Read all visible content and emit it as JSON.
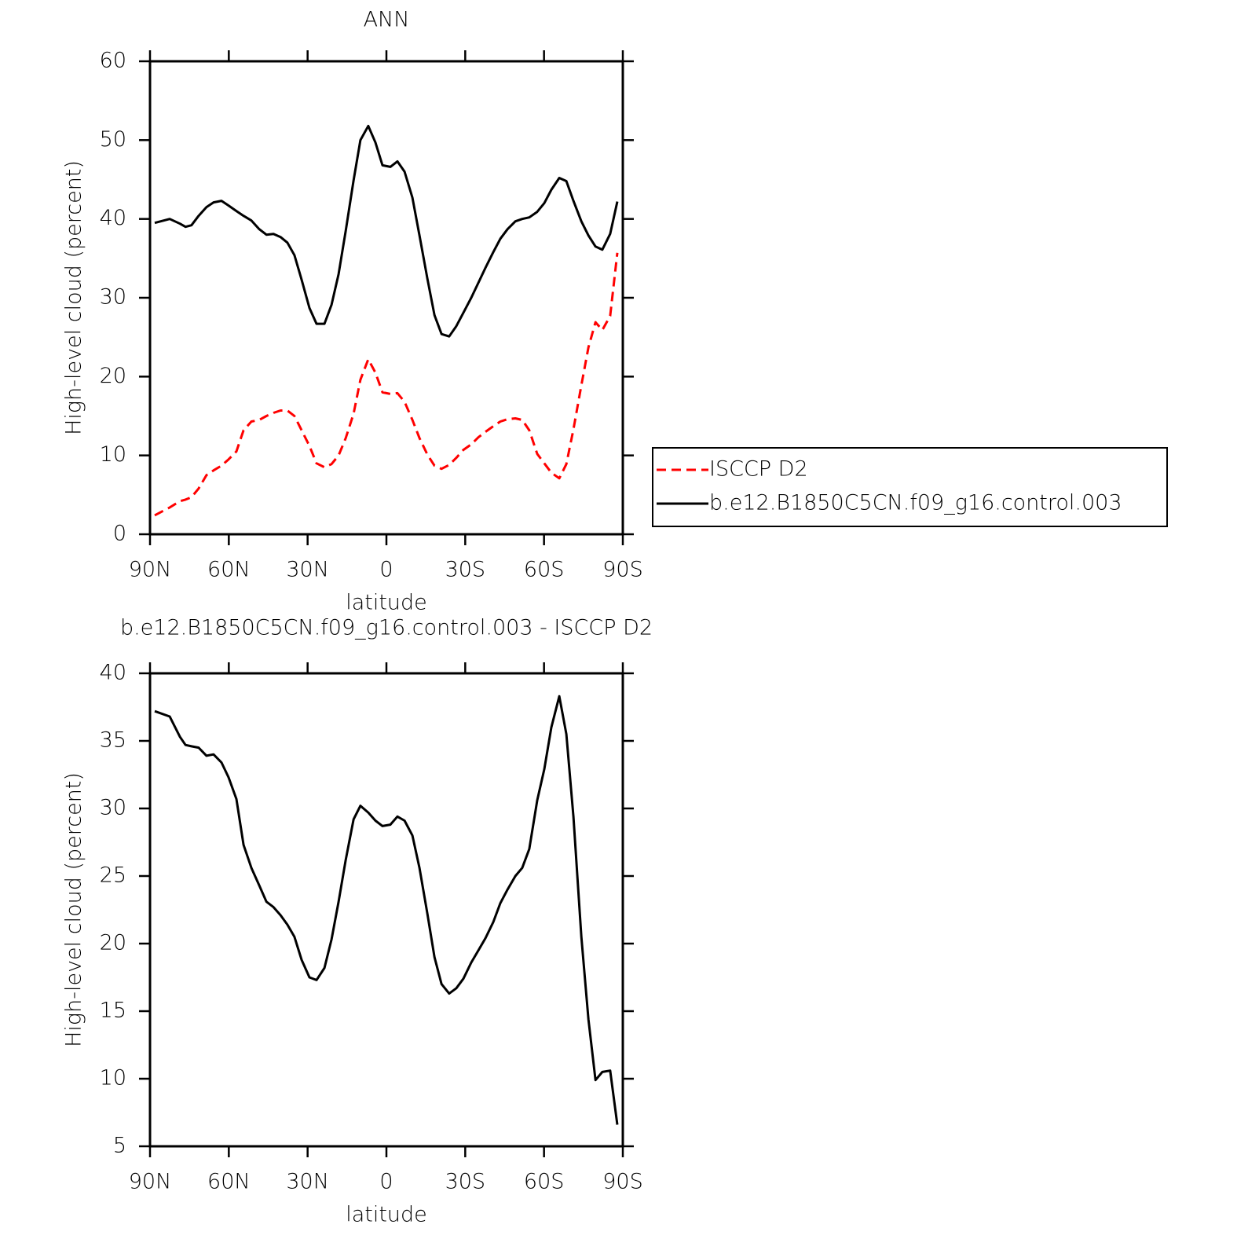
{
  "chart_data": [
    {
      "type": "line",
      "title": "ANN",
      "xlabel": "latitude",
      "ylabel": "High-level cloud (percent)",
      "x": [
        88.2,
        82.5,
        78.6,
        76.5,
        74.2,
        71.5,
        68.5,
        65.8,
        62.8,
        60.1,
        57.1,
        54.4,
        51.4,
        48.4,
        45.7,
        43.0,
        40.3,
        37.7,
        35.0,
        32.3,
        29.3,
        26.6,
        23.6,
        20.9,
        18.2,
        15.5,
        12.5,
        9.9,
        6.9,
        4.2,
        1.5,
        -1.5,
        -4.2,
        -6.9,
        -9.9,
        -12.6,
        -15.6,
        -18.3,
        -21.0,
        -23.9,
        -26.6,
        -29.3,
        -32.3,
        -35.0,
        -37.7,
        -40.7,
        -43.4,
        -46.1,
        -49.1,
        -51.7,
        -54.4,
        -57.4,
        -60.1,
        -62.8,
        -65.8,
        -68.5,
        -71.2,
        -74.2,
        -76.9,
        -79.6,
        -82.2,
        -85.2,
        -87.9
      ],
      "xlim": [
        90,
        -90
      ],
      "xticks": [
        {
          "value": 90,
          "label": "90N"
        },
        {
          "value": 60,
          "label": "60N"
        },
        {
          "value": 30,
          "label": "30N"
        },
        0,
        {
          "value": -30,
          "label": "30S"
        },
        {
          "value": -60,
          "label": "60S"
        },
        {
          "value": -90,
          "label": "90S"
        }
      ],
      "ylim": [
        0,
        60
      ],
      "yticks": [
        0,
        10,
        20,
        30,
        40,
        50,
        60
      ],
      "series": [
        {
          "name": "ISCCP D2",
          "color": "#ff0000",
          "line_style": "dashed",
          "values": [
            2.4,
            3.4,
            4.2,
            4.4,
            4.7,
            5.8,
            7.5,
            8.1,
            8.7,
            9.5,
            10.5,
            13.2,
            14.3,
            14.5,
            15.0,
            15.4,
            15.7,
            15.7,
            15.0,
            13.2,
            11.2,
            9.0,
            8.5,
            8.9,
            10.0,
            12.2,
            15.3,
            19.6,
            22.2,
            20.5,
            18.0,
            17.8,
            17.9,
            16.8,
            14.5,
            12.2,
            10.1,
            8.7,
            8.3,
            8.8,
            9.7,
            10.7,
            11.4,
            12.3,
            13.0,
            13.7,
            14.3,
            14.6,
            14.7,
            14.5,
            13.2,
            10.2,
            9.0,
            7.8,
            7.1,
            8.9,
            13.3,
            18.9,
            23.7,
            26.9,
            25.9,
            27.7,
            35.7
          ]
        },
        {
          "name": "b.e12.B1850C5CN.f09_g16.control.003",
          "color": "#000000",
          "line_style": "solid",
          "values": [
            39.5,
            40.0,
            39.4,
            39.0,
            39.2,
            40.4,
            41.5,
            42.1,
            42.3,
            41.7,
            41.0,
            40.4,
            39.8,
            38.7,
            38.0,
            38.1,
            37.7,
            37.0,
            35.4,
            32.3,
            28.7,
            26.7,
            26.7,
            29.1,
            33.0,
            38.5,
            44.9,
            50.0,
            51.8,
            49.7,
            46.8,
            46.6,
            47.3,
            46.0,
            42.7,
            37.9,
            32.4,
            27.8,
            25.4,
            25.1,
            26.4,
            28.1,
            30.0,
            31.9,
            33.8,
            35.8,
            37.5,
            38.7,
            39.7,
            40.0,
            40.2,
            40.9,
            42.0,
            43.7,
            45.2,
            44.8,
            42.3,
            39.7,
            37.9,
            36.5,
            36.1,
            38.1,
            42.2
          ]
        }
      ]
    },
    {
      "type": "line",
      "title": "b.e12.B1850C5CN.f09_g16.control.003 - ISCCP D2",
      "xlabel": "latitude",
      "ylabel": "High-level cloud (percent)",
      "x": [
        88.2,
        82.5,
        78.6,
        76.5,
        74.2,
        71.5,
        68.5,
        65.8,
        62.8,
        60.1,
        57.1,
        54.4,
        51.4,
        48.4,
        45.7,
        43.0,
        40.3,
        37.7,
        35.0,
        32.3,
        29.3,
        26.6,
        23.6,
        20.9,
        18.2,
        15.5,
        12.5,
        9.9,
        6.9,
        4.2,
        1.5,
        -1.5,
        -4.2,
        -6.9,
        -9.9,
        -12.6,
        -15.6,
        -18.3,
        -21.0,
        -23.9,
        -26.6,
        -29.3,
        -32.3,
        -35.0,
        -37.7,
        -40.7,
        -43.4,
        -46.1,
        -49.1,
        -51.7,
        -54.4,
        -57.4,
        -60.1,
        -62.8,
        -65.8,
        -68.5,
        -71.2,
        -74.2,
        -76.9,
        -79.6,
        -82.2,
        -85.2,
        -87.9
      ],
      "xlim": [
        90,
        -90
      ],
      "xticks": [
        {
          "value": 90,
          "label": "90N"
        },
        {
          "value": 60,
          "label": "60N"
        },
        {
          "value": 30,
          "label": "30N"
        },
        0,
        {
          "value": -30,
          "label": "30S"
        },
        {
          "value": -60,
          "label": "60S"
        },
        {
          "value": -90,
          "label": "90S"
        }
      ],
      "ylim": [
        5,
        40
      ],
      "yticks": [
        5,
        10,
        15,
        20,
        25,
        30,
        35,
        40
      ],
      "color": "#000000",
      "values": [
        37.2,
        36.8,
        35.3,
        34.7,
        34.6,
        34.5,
        33.9,
        34.0,
        33.4,
        32.3,
        30.7,
        27.3,
        25.6,
        24.3,
        23.1,
        22.7,
        22.1,
        21.4,
        20.5,
        18.8,
        17.5,
        17.3,
        18.2,
        20.3,
        23.1,
        26.2,
        29.2,
        30.2,
        29.7,
        29.1,
        28.7,
        28.8,
        29.4,
        29.1,
        28.0,
        25.6,
        22.2,
        19.0,
        17.0,
        16.3,
        16.7,
        17.4,
        18.6,
        19.5,
        20.4,
        21.6,
        23.0,
        24.0,
        25.0,
        25.6,
        27.0,
        30.6,
        32.9,
        36.0,
        38.3,
        35.5,
        29.4,
        20.5,
        14.4,
        9.9,
        10.5,
        10.6,
        6.6
      ]
    }
  ]
}
